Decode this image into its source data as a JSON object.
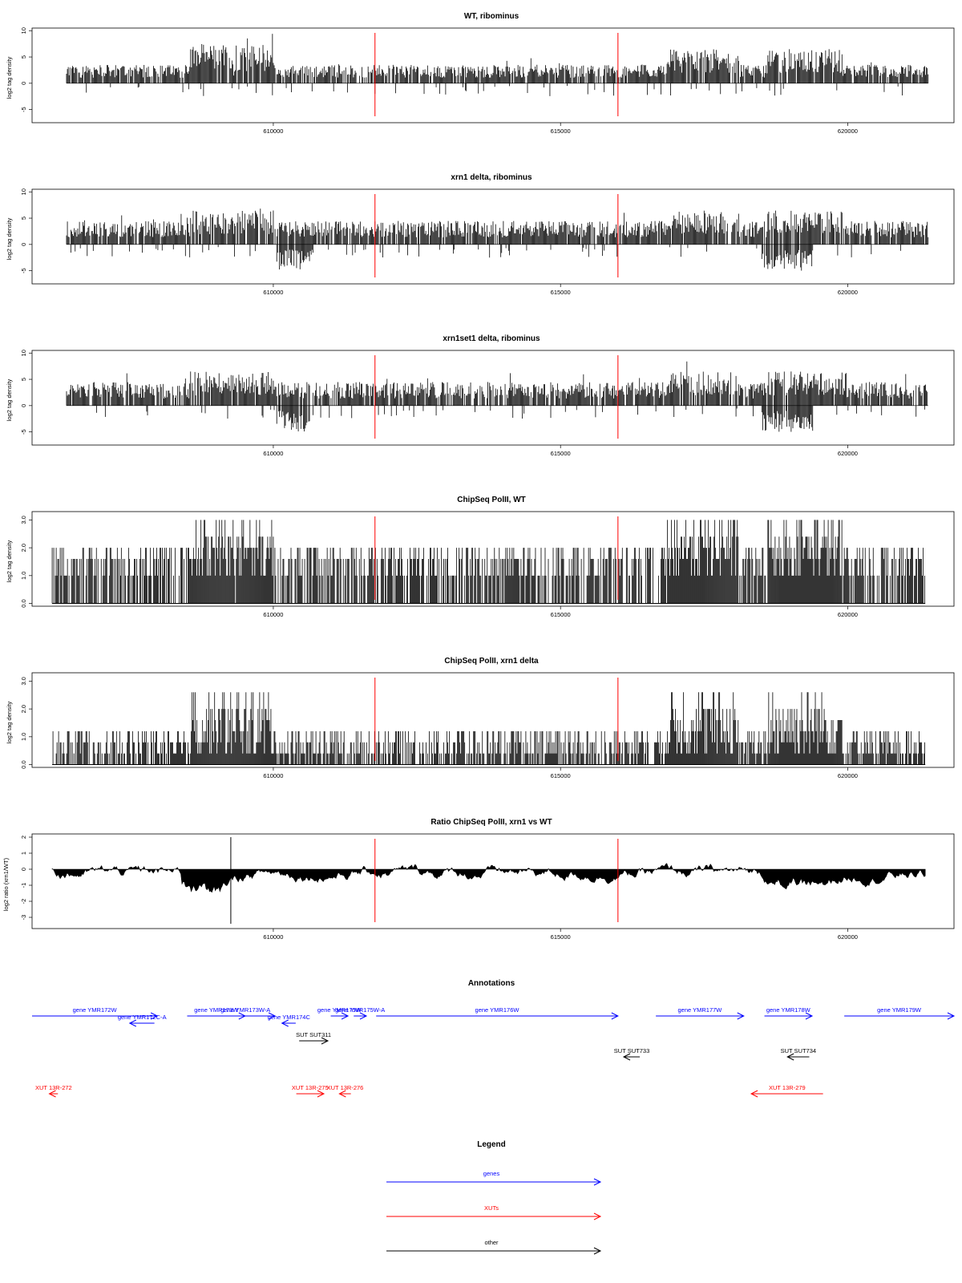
{
  "colors": {
    "gene": "#0000ff",
    "xut": "#ff0000",
    "other": "#000000",
    "marker": "#ff0000",
    "bar": "#000000"
  },
  "panels": [
    {
      "title": "WT, ribominus",
      "ylabel": "log2 tag density",
      "yticks": [
        "-5",
        "0",
        "5",
        "10"
      ]
    },
    {
      "title": "xrn1 delta, ribominus",
      "ylabel": "log2 tag density",
      "yticks": [
        "-5",
        "0",
        "5",
        "10"
      ]
    },
    {
      "title": "xrn1set1 delta, ribominus",
      "ylabel": "log2 tag density",
      "yticks": [
        "-5",
        "0",
        "5",
        "10"
      ]
    },
    {
      "title": "ChipSeq PolII, WT",
      "ylabel": "log2 tag density",
      "yticks": [
        "0.0",
        "1.0",
        "2.0",
        "3.0"
      ]
    },
    {
      "title": "ChipSeq PolII, xrn1 delta",
      "ylabel": "log2 tag density",
      "yticks": [
        "0.0",
        "1.0",
        "2.0",
        "3.0"
      ]
    },
    {
      "title": "Ratio ChipSeq PolII, xrn1 vs WT",
      "ylabel": "log2 ratio (xrn1/WT)",
      "yticks": [
        "-3",
        "-2",
        "-1",
        "0",
        "1",
        "2"
      ]
    }
  ],
  "xticks": [
    "610000",
    "615000",
    "620000"
  ],
  "annotations": {
    "title": "Annotations",
    "features": [
      {
        "label": "gene YMR172W",
        "kind": "gene"
      },
      {
        "label": "gene YMR172C-A",
        "kind": "gene"
      },
      {
        "label": "gene YMR173W",
        "kind": "gene"
      },
      {
        "label": "gene YMR173W-A",
        "kind": "gene"
      },
      {
        "label": "gene YMR174C",
        "kind": "gene"
      },
      {
        "label": "gene YMR175W",
        "kind": "gene"
      },
      {
        "label": "gene YMR175W-A",
        "kind": "gene"
      },
      {
        "label": "gene YMR176W",
        "kind": "gene"
      },
      {
        "label": "gene YMR177W",
        "kind": "gene"
      },
      {
        "label": "gene YMR178W",
        "kind": "gene"
      },
      {
        "label": "gene YMR179W",
        "kind": "gene"
      },
      {
        "label": "SUT SUT311",
        "kind": "other"
      },
      {
        "label": "SUT SUT733",
        "kind": "other"
      },
      {
        "label": "SUT SUT734",
        "kind": "other"
      },
      {
        "label": "XUT 13R-272",
        "kind": "xut"
      },
      {
        "label": "XUT 13R-275",
        "kind": "xut"
      },
      {
        "label": "XUT 13R-276",
        "kind": "xut"
      },
      {
        "label": "XUT 13R-279",
        "kind": "xut"
      }
    ]
  },
  "legend": {
    "title": "Legend",
    "items": [
      {
        "label": "genes",
        "kind": "gene"
      },
      {
        "label": "XUTs",
        "kind": "xut"
      },
      {
        "label": "other",
        "kind": "other"
      }
    ]
  },
  "chart_data": {
    "type": "bar",
    "xlim": [
      605800,
      621850
    ],
    "markers_x": [
      611770,
      616000
    ],
    "series_ranges": [
      {
        "name": "WT, ribominus",
        "ylim": [
          -7.5,
          10.5
        ]
      },
      {
        "name": "xrn1 delta, ribominus",
        "ylim": [
          -7.5,
          10.5
        ]
      },
      {
        "name": "xrn1set1 delta, ribominus",
        "ylim": [
          -7.5,
          10.5
        ]
      },
      {
        "name": "ChipSeq PolII, WT",
        "ylim": [
          -0.1,
          3.3
        ]
      },
      {
        "name": "ChipSeq PolII, xrn1 delta",
        "ylim": [
          -0.1,
          3.3
        ]
      },
      {
        "name": "Ratio ChipSeq PolII, xrn1 vs WT",
        "ylim": [
          -3.7,
          2.2
        ]
      }
    ],
    "annotation_features": [
      {
        "label": "gene YMR172W",
        "start": 605800,
        "end": 607980,
        "strand": "+"
      },
      {
        "label": "gene YMR172C-A",
        "start": 607500,
        "end": 607930,
        "strand": "-"
      },
      {
        "label": "gene YMR173W",
        "start": 608500,
        "end": 609510,
        "strand": "+"
      },
      {
        "label": "gene YMR173W-A",
        "start": 609000,
        "end": 610030,
        "strand": "+"
      },
      {
        "label": "gene YMR174C",
        "start": 610150,
        "end": 610390,
        "strand": "-"
      },
      {
        "label": "gene YMR175W",
        "start": 611000,
        "end": 611300,
        "strand": "+"
      },
      {
        "label": "gene YMR175W-A",
        "start": 611400,
        "end": 611620,
        "strand": "+"
      },
      {
        "label": "gene YMR176W",
        "start": 611790,
        "end": 616000,
        "strand": "+"
      },
      {
        "label": "gene YMR177W",
        "start": 616660,
        "end": 618190,
        "strand": "+"
      },
      {
        "label": "gene YMR178W",
        "start": 618550,
        "end": 619380,
        "strand": "+"
      },
      {
        "label": "gene YMR179W",
        "start": 619940,
        "end": 621850,
        "strand": "+"
      },
      {
        "label": "SUT SUT311",
        "start": 610450,
        "end": 610950,
        "strand": "+"
      },
      {
        "label": "SUT SUT733",
        "start": 616100,
        "end": 616380,
        "strand": "-"
      },
      {
        "label": "SUT SUT734",
        "start": 618950,
        "end": 619330,
        "strand": "-"
      },
      {
        "label": "XUT 13R-272",
        "start": 606100,
        "end": 606250,
        "strand": "-"
      },
      {
        "label": "XUT 13R-275",
        "start": 610400,
        "end": 610880,
        "strand": "+"
      },
      {
        "label": "XUT 13R-276",
        "start": 611150,
        "end": 611350,
        "strand": "-"
      },
      {
        "label": "XUT 13R-279",
        "start": 618320,
        "end": 619570,
        "strand": "-"
      }
    ]
  }
}
